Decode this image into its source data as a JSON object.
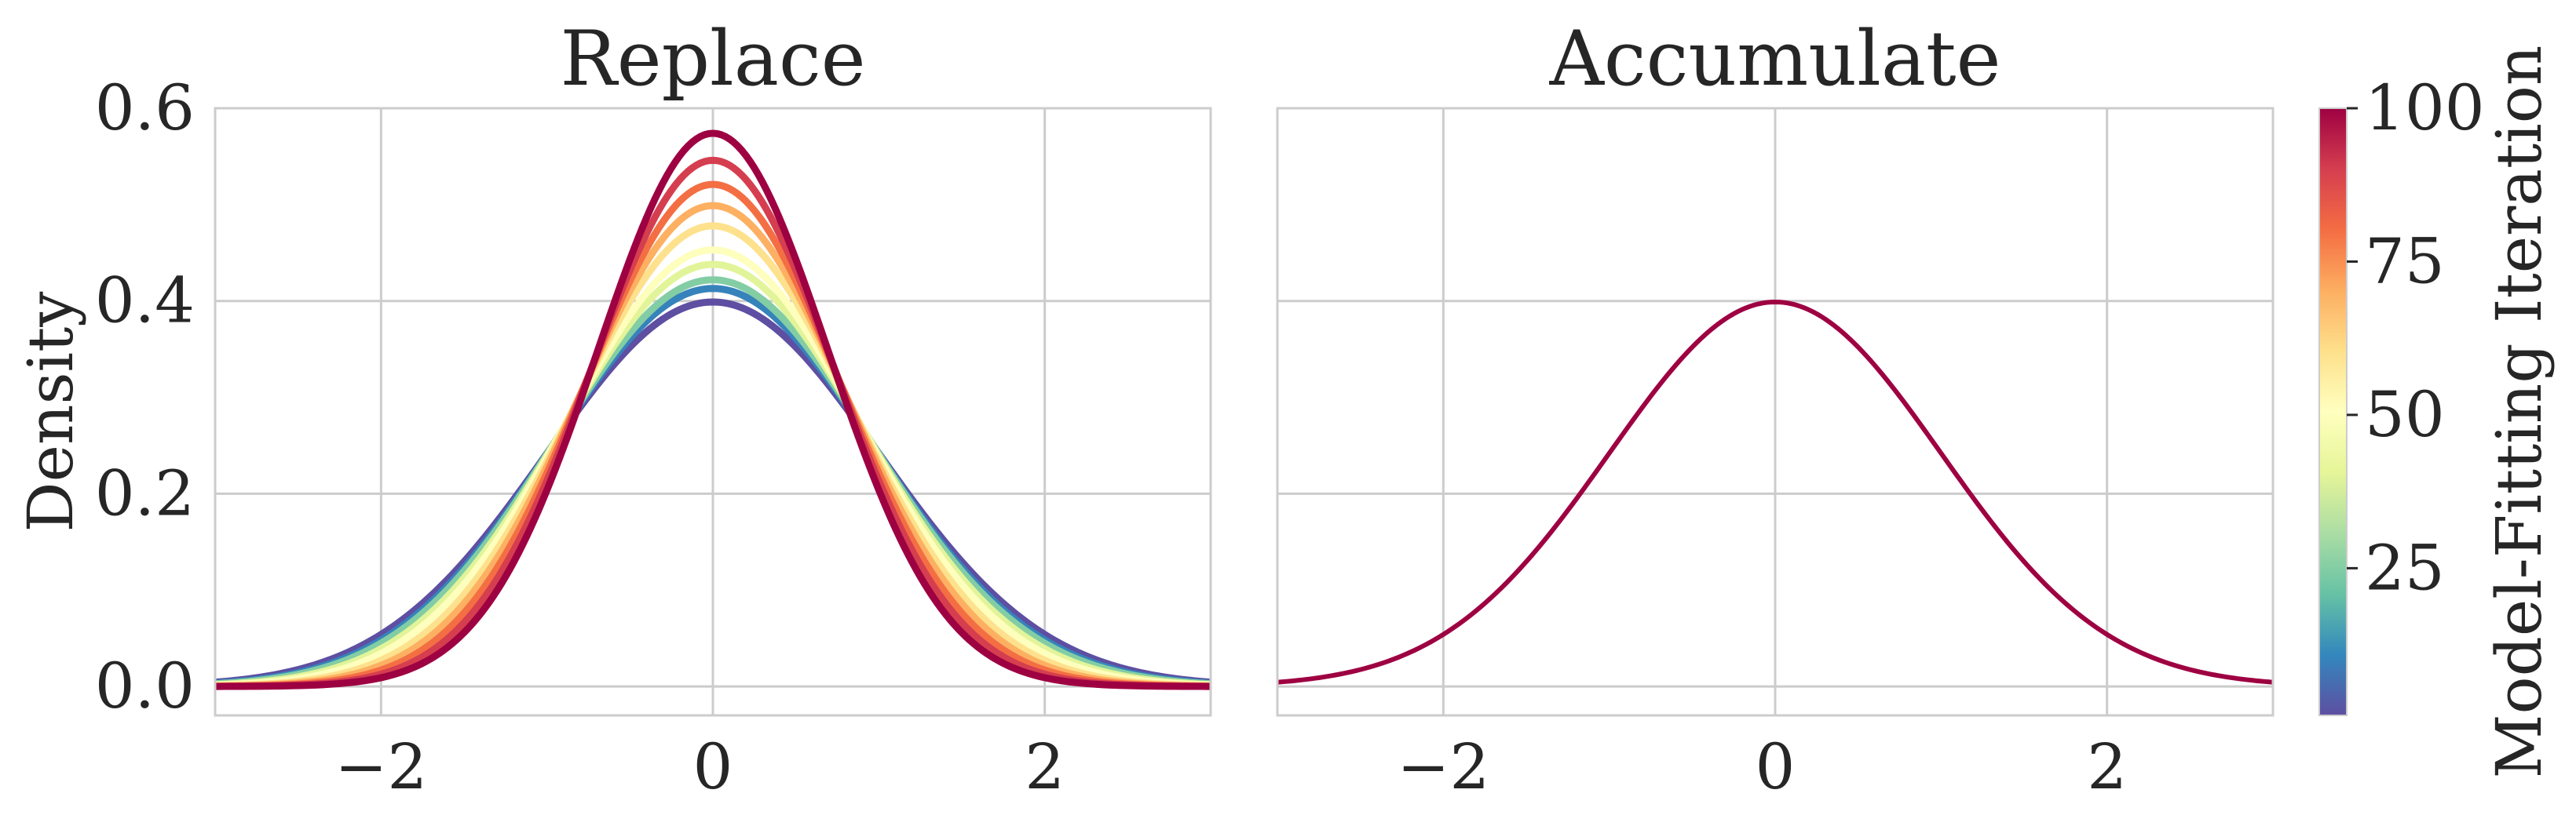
{
  "chart_data": [
    {
      "type": "line",
      "title": "Replace",
      "xlabel": "",
      "ylabel": "Density",
      "xlim": [
        -3,
        3
      ],
      "ylim": [
        -0.03,
        0.6
      ],
      "xticks": [
        -2,
        0,
        2
      ],
      "yticks": [
        0.0,
        0.2,
        0.4,
        0.6
      ],
      "xtick_labels": [
        "−2",
        "0",
        "2"
      ],
      "ytick_labels": [
        "0.0",
        "0.2",
        "0.4",
        "0.6"
      ],
      "grid": true,
      "curve": "normal density with mean 0; standard deviation shrinks with model-fitting iteration",
      "series": [
        {
          "iteration": 1,
          "mean": 0,
          "std": 1.0,
          "peak": 0.399
        },
        {
          "iteration": 10,
          "mean": 0,
          "std": 0.965,
          "peak": 0.413
        },
        {
          "iteration": 25,
          "mean": 0,
          "std": 0.945,
          "peak": 0.422
        },
        {
          "iteration": 40,
          "mean": 0,
          "std": 0.91,
          "peak": 0.438
        },
        {
          "iteration": 50,
          "mean": 0,
          "std": 0.88,
          "peak": 0.453
        },
        {
          "iteration": 60,
          "mean": 0,
          "std": 0.835,
          "peak": 0.478
        },
        {
          "iteration": 70,
          "mean": 0,
          "std": 0.8,
          "peak": 0.499
        },
        {
          "iteration": 80,
          "mean": 0,
          "std": 0.765,
          "peak": 0.521
        },
        {
          "iteration": 90,
          "mean": 0,
          "std": 0.73,
          "peak": 0.546
        },
        {
          "iteration": 100,
          "mean": 0,
          "std": 0.695,
          "peak": 0.574
        }
      ]
    },
    {
      "type": "line",
      "title": "Accumulate",
      "xlabel": "",
      "ylabel": "",
      "xlim": [
        -3,
        3
      ],
      "ylim": [
        -0.03,
        0.6
      ],
      "xticks": [
        -2,
        0,
        2
      ],
      "xtick_labels": [
        "−2",
        "0",
        "2"
      ],
      "grid": true,
      "curve": "normal density, all iterations overlap",
      "series": [
        {
          "iteration": 100,
          "mean": 0,
          "std": 1.0,
          "peak": 0.399
        }
      ]
    }
  ],
  "colorbar": {
    "label": "Model-Fitting Iteration",
    "range": [
      1,
      100
    ],
    "ticks": [
      25,
      50,
      75,
      100
    ],
    "tick_labels": [
      "25",
      "50",
      "75",
      "100"
    ],
    "colormap": "Spectral_r",
    "stops": [
      "#5e4fa2",
      "#3288bd",
      "#66c2a5",
      "#abdda4",
      "#e6f598",
      "#ffffbf",
      "#fee08b",
      "#fdae61",
      "#f46d43",
      "#d53e4f",
      "#9e0142"
    ]
  }
}
